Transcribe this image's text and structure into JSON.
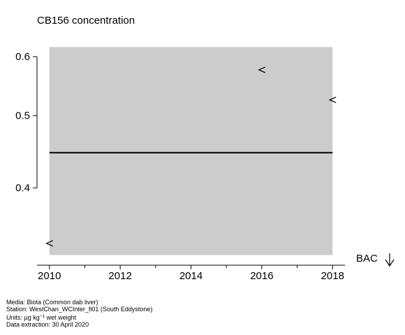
{
  "chart_data": {
    "type": "scatter",
    "title": "CB156 concentration",
    "xlabel": "",
    "ylabel": "",
    "x_ticks": [
      2010,
      2012,
      2014,
      2016,
      2018
    ],
    "y_ticks": [
      0.4,
      0.5,
      0.6
    ],
    "x_tick_labels": [
      "2010",
      "2012",
      "2014",
      "2016",
      "2018"
    ],
    "y_tick_labels": [
      "0.4",
      "0.5",
      "0.6"
    ],
    "xlim": [
      2009.65,
      2018.35
    ],
    "y_scale": "log",
    "ylim": [
      0.315,
      0.628
    ],
    "shaded_region": {
      "x": [
        2010,
        2018
      ],
      "y": [
        0.325,
        0.618
      ],
      "color": "#cccccc"
    },
    "trend_line": {
      "x": [
        2010,
        2018
      ],
      "y": [
        0.446,
        0.446
      ],
      "color": "#000000"
    },
    "points": [
      {
        "x": 2010,
        "y": 0.337,
        "marker": "<",
        "label": "below detection limit"
      },
      {
        "x": 2016,
        "y": 0.576,
        "marker": "<",
        "label": "below detection limit"
      },
      {
        "x": 2018,
        "y": 0.525,
        "marker": "<",
        "label": "below detection limit"
      }
    ],
    "bac_label": "BAC",
    "grid": false,
    "legend": "none"
  },
  "footer": {
    "media": "Media: Biota (Common dab liver)",
    "station": "Station: WestChan_WCInter_fi01 (South Eddystone)",
    "units_prefix": "Units:  µg kg",
    "units_sup": "−1",
    "units_suffix": " wet weight",
    "extraction": "Data extraction: 30 April 2020"
  }
}
